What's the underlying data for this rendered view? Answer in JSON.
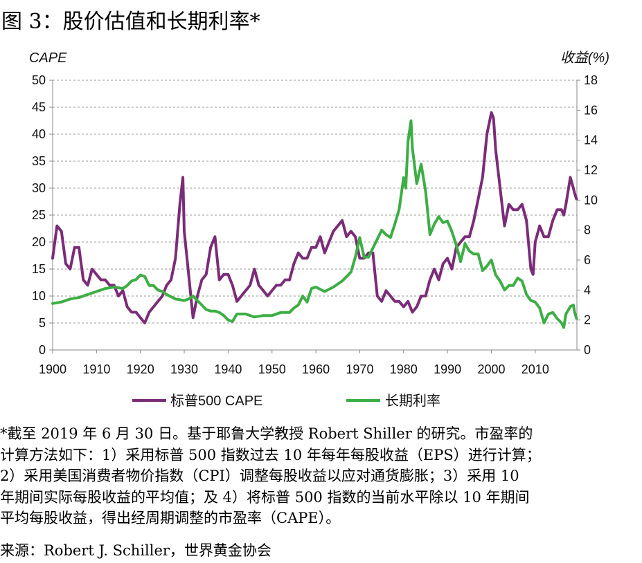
{
  "figure_title": "图 3：股价估值和长期利率*",
  "chart_data": {
    "type": "line",
    "title": "",
    "left_axis": {
      "label": "CAPE",
      "ylim": [
        0,
        50
      ],
      "ticks": [
        0,
        5,
        10,
        15,
        20,
        25,
        30,
        35,
        40,
        45,
        50
      ]
    },
    "right_axis": {
      "label": "收益(%)",
      "ylim": [
        0,
        18
      ],
      "ticks": [
        0,
        2,
        4,
        6,
        8,
        10,
        12,
        14,
        16,
        18
      ]
    },
    "x_axis": {
      "xlim": [
        1900,
        2019.5
      ],
      "ticks": [
        1900,
        1910,
        1920,
        1930,
        1940,
        1950,
        1960,
        1970,
        1980,
        1990,
        2000,
        2010
      ]
    },
    "grid": "horizontal dashed",
    "legend_position": "bottom",
    "series": [
      {
        "name": "标普500 CAPE",
        "axis": "left",
        "color": "#7b2c78",
        "points": [
          [
            1900,
            17
          ],
          [
            1901,
            23
          ],
          [
            1902,
            22
          ],
          [
            1903,
            16
          ],
          [
            1904,
            15
          ],
          [
            1905,
            19
          ],
          [
            1906,
            19
          ],
          [
            1907,
            13
          ],
          [
            1908,
            12
          ],
          [
            1909,
            15
          ],
          [
            1910,
            14
          ],
          [
            1911,
            13
          ],
          [
            1912,
            13
          ],
          [
            1913,
            12
          ],
          [
            1914,
            12
          ],
          [
            1915,
            10
          ],
          [
            1916,
            11
          ],
          [
            1917,
            8
          ],
          [
            1918,
            7
          ],
          [
            1919,
            7
          ],
          [
            1920,
            6
          ],
          [
            1921,
            5
          ],
          [
            1922,
            7
          ],
          [
            1923,
            8
          ],
          [
            1924,
            9
          ],
          [
            1925,
            10
          ],
          [
            1926,
            12
          ],
          [
            1927,
            13
          ],
          [
            1928,
            17
          ],
          [
            1929,
            27
          ],
          [
            1929.7,
            32
          ],
          [
            1930,
            22
          ],
          [
            1931,
            14
          ],
          [
            1932,
            6
          ],
          [
            1933,
            10
          ],
          [
            1934,
            13
          ],
          [
            1935,
            14
          ],
          [
            1936,
            19
          ],
          [
            1937,
            21
          ],
          [
            1938,
            13
          ],
          [
            1939,
            14
          ],
          [
            1940,
            14
          ],
          [
            1941,
            12
          ],
          [
            1942,
            9
          ],
          [
            1943,
            10
          ],
          [
            1944,
            11
          ],
          [
            1945,
            12
          ],
          [
            1946,
            15
          ],
          [
            1947,
            12
          ],
          [
            1948,
            11
          ],
          [
            1949,
            10
          ],
          [
            1950,
            11
          ],
          [
            1951,
            12
          ],
          [
            1952,
            12
          ],
          [
            1953,
            13
          ],
          [
            1954,
            13
          ],
          [
            1955,
            16
          ],
          [
            1956,
            18
          ],
          [
            1957,
            17
          ],
          [
            1958,
            17
          ],
          [
            1959,
            19
          ],
          [
            1960,
            19
          ],
          [
            1961,
            21
          ],
          [
            1962,
            18
          ],
          [
            1963,
            20
          ],
          [
            1964,
            22
          ],
          [
            1965,
            23
          ],
          [
            1966,
            24
          ],
          [
            1967,
            21
          ],
          [
            1968,
            22
          ],
          [
            1969,
            21
          ],
          [
            1970,
            17
          ],
          [
            1971,
            17
          ],
          [
            1972,
            18
          ],
          [
            1973,
            18
          ],
          [
            1974,
            10
          ],
          [
            1975,
            9
          ],
          [
            1976,
            11
          ],
          [
            1977,
            10
          ],
          [
            1978,
            9
          ],
          [
            1979,
            9
          ],
          [
            1980,
            8
          ],
          [
            1981,
            9
          ],
          [
            1982,
            7
          ],
          [
            1983,
            8
          ],
          [
            1984,
            10
          ],
          [
            1985,
            10
          ],
          [
            1986,
            13
          ],
          [
            1987,
            15
          ],
          [
            1988,
            13
          ],
          [
            1989,
            16
          ],
          [
            1990,
            17
          ],
          [
            1991,
            15
          ],
          [
            1992,
            19
          ],
          [
            1993,
            20
          ],
          [
            1994,
            21
          ],
          [
            1995,
            21
          ],
          [
            1996,
            24
          ],
          [
            1997,
            28
          ],
          [
            1998,
            32
          ],
          [
            1999,
            40
          ],
          [
            2000,
            44
          ],
          [
            2000.5,
            43
          ],
          [
            2001,
            37
          ],
          [
            2002,
            30
          ],
          [
            2003,
            23
          ],
          [
            2004,
            27
          ],
          [
            2005,
            26
          ],
          [
            2006,
            26
          ],
          [
            2007,
            27
          ],
          [
            2008,
            24
          ],
          [
            2009,
            15
          ],
          [
            2009.5,
            14
          ],
          [
            2010,
            20
          ],
          [
            2011,
            23
          ],
          [
            2012,
            21
          ],
          [
            2013,
            21
          ],
          [
            2014,
            24
          ],
          [
            2015,
            26
          ],
          [
            2016,
            26
          ],
          [
            2016.5,
            25
          ],
          [
            2017,
            27
          ],
          [
            2018,
            32
          ],
          [
            2018.7,
            30
          ],
          [
            2019,
            29
          ],
          [
            2019.4,
            28
          ]
        ]
      },
      {
        "name": "长期利率",
        "axis": "right",
        "color": "#3dae45",
        "points": [
          [
            1900,
            3.1
          ],
          [
            1902,
            3.2
          ],
          [
            1904,
            3.4
          ],
          [
            1906,
            3.5
          ],
          [
            1908,
            3.7
          ],
          [
            1910,
            3.9
          ],
          [
            1912,
            4.1
          ],
          [
            1914,
            4.2
          ],
          [
            1916,
            4.1
          ],
          [
            1917,
            4.3
          ],
          [
            1918,
            4.6
          ],
          [
            1919,
            4.7
          ],
          [
            1920,
            5.0
          ],
          [
            1921,
            4.9
          ],
          [
            1922,
            4.3
          ],
          [
            1923,
            4.3
          ],
          [
            1924,
            4.0
          ],
          [
            1925,
            3.9
          ],
          [
            1926,
            3.7
          ],
          [
            1928,
            3.4
          ],
          [
            1930,
            3.3
          ],
          [
            1931,
            3.4
          ],
          [
            1932,
            3.6
          ],
          [
            1933,
            3.3
          ],
          [
            1934,
            3.0
          ],
          [
            1935,
            2.7
          ],
          [
            1936,
            2.6
          ],
          [
            1937,
            2.6
          ],
          [
            1938,
            2.5
          ],
          [
            1939,
            2.3
          ],
          [
            1940,
            2.0
          ],
          [
            1941,
            1.9
          ],
          [
            1942,
            2.4
          ],
          [
            1944,
            2.4
          ],
          [
            1946,
            2.2
          ],
          [
            1948,
            2.3
          ],
          [
            1950,
            2.3
          ],
          [
            1952,
            2.5
          ],
          [
            1954,
            2.5
          ],
          [
            1955,
            2.8
          ],
          [
            1956,
            3.0
          ],
          [
            1957,
            3.6
          ],
          [
            1958,
            3.2
          ],
          [
            1959,
            4.1
          ],
          [
            1960,
            4.2
          ],
          [
            1962,
            3.9
          ],
          [
            1964,
            4.2
          ],
          [
            1966,
            4.6
          ],
          [
            1968,
            5.2
          ],
          [
            1969,
            6.2
          ],
          [
            1970,
            7.5
          ],
          [
            1971,
            6.2
          ],
          [
            1972,
            6.2
          ],
          [
            1973,
            6.8
          ],
          [
            1974,
            7.4
          ],
          [
            1975,
            8.0
          ],
          [
            1976,
            7.7
          ],
          [
            1977,
            7.5
          ],
          [
            1978,
            8.4
          ],
          [
            1979,
            9.4
          ],
          [
            1980,
            11.5
          ],
          [
            1980.5,
            10.8
          ],
          [
            1981,
            13.9
          ],
          [
            1981.7,
            15.3
          ],
          [
            1982,
            13.5
          ],
          [
            1983,
            11.1
          ],
          [
            1984,
            12.4
          ],
          [
            1985,
            10.6
          ],
          [
            1986,
            7.7
          ],
          [
            1987,
            8.4
          ],
          [
            1988,
            8.9
          ],
          [
            1989,
            8.5
          ],
          [
            1990,
            8.6
          ],
          [
            1991,
            7.9
          ],
          [
            1992,
            7.0
          ],
          [
            1993,
            5.9
          ],
          [
            1994,
            7.1
          ],
          [
            1995,
            6.6
          ],
          [
            1996,
            6.4
          ],
          [
            1997,
            6.4
          ],
          [
            1998,
            5.3
          ],
          [
            1999,
            5.6
          ],
          [
            2000,
            6.0
          ],
          [
            2001,
            5.0
          ],
          [
            2002,
            4.6
          ],
          [
            2003,
            4.0
          ],
          [
            2004,
            4.3
          ],
          [
            2005,
            4.3
          ],
          [
            2006,
            4.8
          ],
          [
            2007,
            4.6
          ],
          [
            2008,
            3.7
          ],
          [
            2009,
            3.3
          ],
          [
            2010,
            3.2
          ],
          [
            2011,
            2.8
          ],
          [
            2012,
            1.8
          ],
          [
            2013,
            2.4
          ],
          [
            2014,
            2.5
          ],
          [
            2015,
            2.1
          ],
          [
            2016,
            1.8
          ],
          [
            2016.5,
            1.5
          ],
          [
            2017,
            2.4
          ],
          [
            2018,
            2.9
          ],
          [
            2018.7,
            3.0
          ],
          [
            2019,
            2.5
          ],
          [
            2019.4,
            2.1
          ]
        ]
      }
    ]
  },
  "footnote_lines": [
    "*截至 2019 年 6 月 30 日。基于耶鲁大学教授 Robert Shiller 的研究。市盈率的",
    "计算方法如下：1）采用标普 500 指数过去 10 年每年每股收益（EPS）进行计算；",
    "2）采用美国消费者物价指数（CPI）调整每股收益以应对通货膨胀；3）采用 10",
    "年期间实际每股收益的平均值；及 4）将标普 500 指数的当前水平除以 10 年期间",
    "平均每股收益，得出经周期调整的市盈率（CAPE）。"
  ],
  "source": "来源：Robert J. Schiller，世界黄金协会"
}
